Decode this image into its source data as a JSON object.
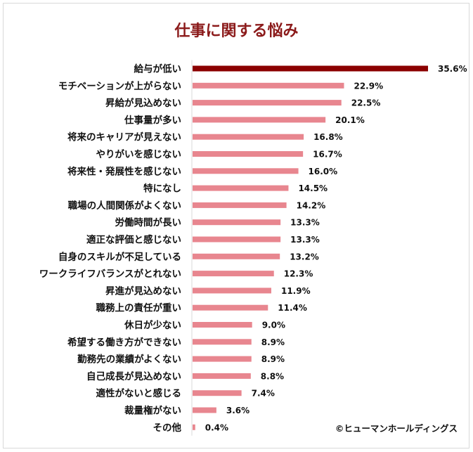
{
  "chart_data": {
    "type": "bar",
    "orientation": "horizontal",
    "title": "仕事に関する悩み",
    "categories": [
      "給与が低い",
      "モチベーションが上がらない",
      "昇給が見込めない",
      "仕事量が多い",
      "将来のキャリアが見えない",
      "やりがいを感じない",
      "将来性・発展性を感じない",
      "特になし",
      "職場の人間関係がよくない",
      "労働時間が長い",
      "適正な評価と感じない",
      "自身のスキルが不足している",
      "ワークライフバランスがとれない",
      "昇進が見込めない",
      "職務上の責任が重い",
      "休日が少ない",
      "希望する働き方ができない",
      "勤務先の業績がよくない",
      "自己成長が見込めない",
      "適性がないと感じる",
      "裁量権がない",
      "その他"
    ],
    "values": [
      35.6,
      22.9,
      22.5,
      20.1,
      16.8,
      16.7,
      16.0,
      14.5,
      14.2,
      13.3,
      13.3,
      13.2,
      12.3,
      11.9,
      11.4,
      9.0,
      8.9,
      8.9,
      8.8,
      7.4,
      3.6,
      0.4
    ],
    "value_labels": [
      "35.6%",
      "22.9%",
      "22.5%",
      "20.1%",
      "16.8%",
      "16.7%",
      "16.0%",
      "14.5%",
      "14.2%",
      "13.3%",
      "13.3%",
      "13.2%",
      "12.3%",
      "11.9%",
      "11.4%",
      "9.0%",
      "8.9%",
      "8.9%",
      "8.8%",
      "7.4%",
      "3.6%",
      "0.4%"
    ],
    "unit": "%",
    "xlim": [
      0,
      36
    ],
    "grid": false,
    "legend": "none",
    "colors": {
      "highlight": "#8b0000",
      "bar": "#e8868f",
      "title": "#8b1a1a"
    }
  },
  "credit": "©ヒューマンホールディングス"
}
